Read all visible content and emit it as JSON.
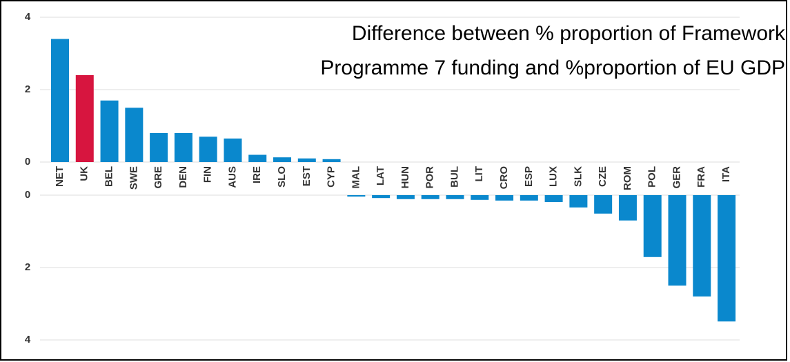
{
  "chart_data": [
    {
      "type": "bar",
      "title": [
        "Difference between % proportion of Framework",
        "Programme 7 funding and %proportion of EU GDP"
      ],
      "categories": [
        "NET",
        "UK",
        "BEL",
        "SWE",
        "GRE",
        "DEN",
        "FIN",
        "AUS",
        "IRE",
        "SLO",
        "EST",
        "CYP"
      ],
      "values": [
        3.4,
        2.4,
        1.7,
        1.5,
        0.8,
        0.8,
        0.7,
        0.65,
        0.2,
        0.13,
        0.1,
        0.08
      ],
      "colors": [
        "#0a88cd",
        "#d7153f",
        "#0a88cd",
        "#0a88cd",
        "#0a88cd",
        "#0a88cd",
        "#0a88cd",
        "#0a88cd",
        "#0a88cd",
        "#0a88cd",
        "#0a88cd",
        "#0a88cd"
      ],
      "ylim": [
        0,
        4
      ],
      "yticks": [
        0,
        2,
        4
      ],
      "grid": true
    },
    {
      "type": "bar",
      "categories": [
        "MAL",
        "LAT",
        "HUN",
        "POR",
        "BUL",
        "LIT",
        "CRO",
        "ESP",
        "LUX",
        "SLK",
        "CZE",
        "ROM",
        "POL",
        "GER",
        "FRA",
        "ITA"
      ],
      "values": [
        -0.04,
        -0.08,
        -0.11,
        -0.11,
        -0.11,
        -0.13,
        -0.15,
        -0.15,
        -0.19,
        -0.34,
        -0.51,
        -0.7,
        -1.71,
        -2.5,
        -2.8,
        -3.49
      ],
      "color": "#0a88cd",
      "ylim": [
        -4,
        0
      ],
      "yticks": [
        {
          "value": 0,
          "label": "0"
        },
        {
          "value": -2,
          "label": "2"
        },
        {
          "value": -4,
          "label": "4"
        }
      ],
      "grid": true
    }
  ]
}
